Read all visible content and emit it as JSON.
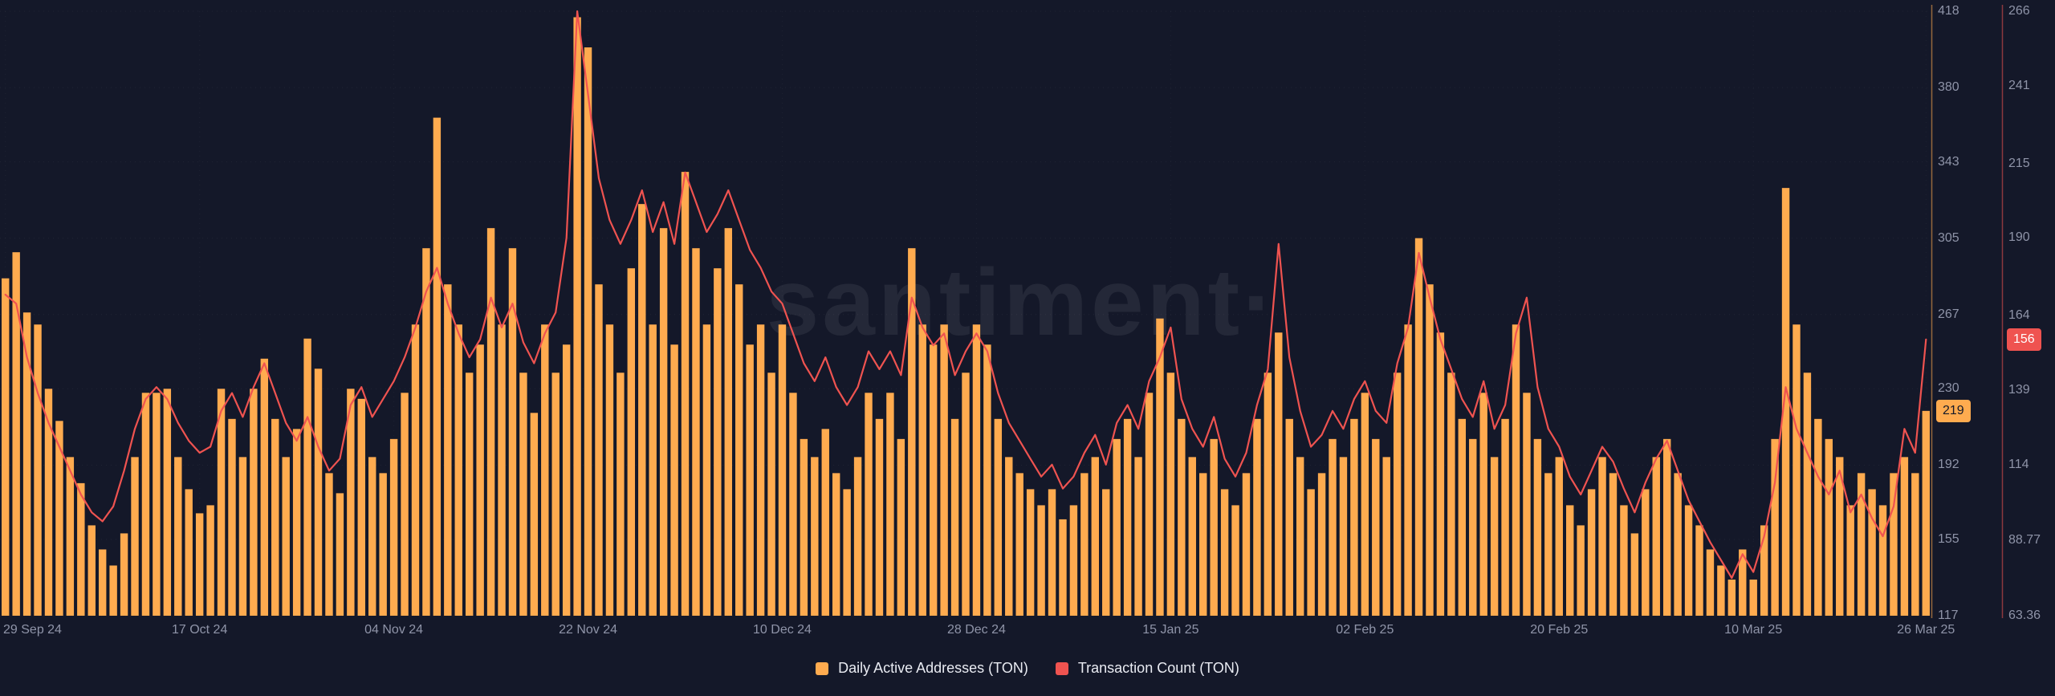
{
  "colors": {
    "background": "#141829",
    "bar": "#ffab4f",
    "line": "#ef5350",
    "axis_text": "#8f94a8",
    "x_label_text": "#8f94a8",
    "legend_text": "#e9ebf2",
    "badge_daa_bg": "#ffab4f",
    "badge_daa_text": "#151929",
    "badge_tx_bg": "#ef5350",
    "badge_tx_text": "#ffffff",
    "grid": "rgba(255,255,255,0.055)",
    "grid_vertical": "rgba(255,255,255,0.04)",
    "watermark": "rgba(255,255,255,0.07)"
  },
  "legend": {
    "items": [
      {
        "label": "Daily Active Addresses (TON)",
        "color": "#ffab4f"
      },
      {
        "label": "Transaction Count (TON)",
        "color": "#ef5350"
      }
    ]
  },
  "chart_data": {
    "type": "bar+line",
    "watermark": "santiment·",
    "x_ticks": [
      {
        "label": "29 Sep 24",
        "day": 0
      },
      {
        "label": "17 Oct 24",
        "day": 18
      },
      {
        "label": "04 Nov 24",
        "day": 36
      },
      {
        "label": "22 Nov 24",
        "day": 54
      },
      {
        "label": "10 Dec 24",
        "day": 72
      },
      {
        "label": "28 Dec 24",
        "day": 90
      },
      {
        "label": "15 Jan 25",
        "day": 108
      },
      {
        "label": "02 Feb 25",
        "day": 126
      },
      {
        "label": "20 Feb 25",
        "day": 144
      },
      {
        "label": "10 Mar 25",
        "day": 162
      },
      {
        "label": "26 Mar 25",
        "day": 178
      }
    ],
    "axis_daa": {
      "min": 117,
      "max": 418,
      "ticks": [
        {
          "label": "418",
          "value": 418
        },
        {
          "label": "380",
          "value": 380
        },
        {
          "label": "343",
          "value": 343
        },
        {
          "label": "305",
          "value": 305
        },
        {
          "label": "267",
          "value": 267
        },
        {
          "label": "230",
          "value": 230
        },
        {
          "label": "192",
          "value": 192
        },
        {
          "label": "155",
          "value": 155
        },
        {
          "label": "117",
          "value": 117
        }
      ]
    },
    "axis_tx": {
      "min": 63.36,
      "max": 266,
      "ticks": [
        {
          "label": "266",
          "value": 266
        },
        {
          "label": "241",
          "value": 241
        },
        {
          "label": "215",
          "value": 215
        },
        {
          "label": "190",
          "value": 190
        },
        {
          "label": "164",
          "value": 164
        },
        {
          "label": "139",
          "value": 139
        },
        {
          "label": "114",
          "value": 114
        },
        {
          "label": "88.77",
          "value": 88.77
        },
        {
          "label": "63.36",
          "value": 63.36
        }
      ]
    },
    "series": [
      {
        "name": "Daily Active Addresses (TON)",
        "type": "bar",
        "color": "#ffab4f",
        "current_value": 219,
        "current_value_label": "219",
        "values": [
          285,
          298,
          268,
          262,
          230,
          214,
          196,
          183,
          162,
          150,
          142,
          158,
          196,
          228,
          228,
          230,
          196,
          180,
          168,
          172,
          230,
          215,
          196,
          230,
          245,
          215,
          196,
          210,
          255,
          240,
          188,
          178,
          230,
          225,
          196,
          188,
          205,
          228,
          262,
          300,
          365,
          282,
          262,
          238,
          252,
          310,
          262,
          300,
          238,
          218,
          262,
          238,
          252,
          415,
          400,
          282,
          262,
          238,
          290,
          322,
          262,
          310,
          252,
          338,
          300,
          262,
          290,
          310,
          282,
          252,
          262,
          238,
          262,
          228,
          205,
          196,
          210,
          188,
          180,
          196,
          228,
          215,
          228,
          205,
          300,
          262,
          252,
          262,
          215,
          238,
          262,
          252,
          215,
          196,
          188,
          180,
          172,
          180,
          165,
          172,
          188,
          196,
          180,
          205,
          215,
          196,
          228,
          265,
          238,
          215,
          196,
          188,
          205,
          180,
          172,
          188,
          215,
          238,
          258,
          215,
          196,
          180,
          188,
          205,
          196,
          215,
          228,
          205,
          196,
          238,
          262,
          305,
          282,
          258,
          238,
          215,
          205,
          228,
          196,
          215,
          262,
          228,
          205,
          188,
          196,
          172,
          162,
          180,
          196,
          188,
          172,
          158,
          180,
          196,
          205,
          188,
          172,
          162,
          150,
          142,
          135,
          150,
          135,
          162,
          205,
          330,
          262,
          238,
          215,
          205,
          196,
          172,
          188,
          180,
          172,
          188,
          196,
          188,
          219
        ]
      },
      {
        "name": "Transaction Count (TON)",
        "type": "line",
        "color": "#ef5350",
        "current_value": 156,
        "current_value_label": "156",
        "values": [
          171,
          168,
          150,
          138,
          128,
          120,
          112,
          104,
          98,
          95,
          100,
          112,
          126,
          136,
          140,
          136,
          128,
          122,
          118,
          120,
          132,
          138,
          130,
          140,
          148,
          138,
          128,
          122,
          130,
          120,
          112,
          116,
          134,
          140,
          130,
          136,
          142,
          150,
          160,
          172,
          180,
          168,
          158,
          150,
          156,
          170,
          160,
          168,
          155,
          148,
          158,
          165,
          190,
          266,
          238,
          210,
          196,
          188,
          196,
          206,
          192,
          202,
          188,
          212,
          202,
          192,
          198,
          206,
          196,
          186,
          180,
          172,
          168,
          158,
          148,
          142,
          150,
          140,
          134,
          140,
          152,
          146,
          152,
          144,
          170,
          160,
          154,
          158,
          144,
          152,
          158,
          152,
          138,
          128,
          122,
          116,
          110,
          114,
          106,
          110,
          118,
          124,
          114,
          128,
          134,
          126,
          142,
          150,
          160,
          136,
          126,
          120,
          130,
          116,
          110,
          118,
          134,
          146,
          188,
          150,
          132,
          120,
          124,
          132,
          126,
          136,
          142,
          132,
          128,
          148,
          160,
          185,
          170,
          156,
          146,
          136,
          130,
          142,
          126,
          134,
          158,
          170,
          140,
          126,
          120,
          110,
          104,
          112,
          120,
          115,
          106,
          98,
          108,
          116,
          122,
          112,
          102,
          95,
          88,
          82,
          76,
          84,
          78,
          90,
          108,
          140,
          126,
          118,
          110,
          104,
          112,
          98,
          104,
          96,
          90,
          100,
          126,
          118,
          156
        ]
      }
    ]
  }
}
